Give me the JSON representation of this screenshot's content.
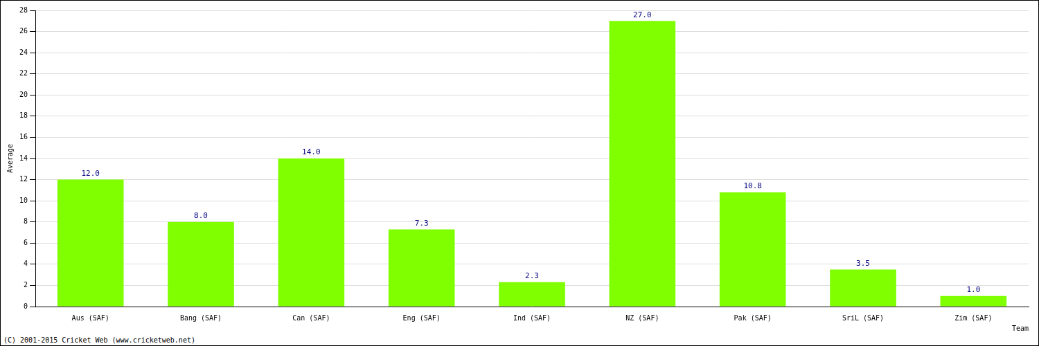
{
  "chart_data": {
    "type": "bar",
    "x_label": "Team",
    "y_label": "Average",
    "annotations": [
      "(C) 2001-2015 Cricket Web (www.cricketweb.net)"
    ],
    "categories": [
      "Aus (SAF)",
      "Bang (SAF)",
      "Can (SAF)",
      "Eng (SAF)",
      "Ind (SAF)",
      "NZ (SAF)",
      "Pak (SAF)",
      "SriL (SAF)",
      "Zim (SAF)"
    ],
    "values": [
      12.0,
      8.0,
      14.0,
      7.3,
      2.3,
      27.0,
      10.8,
      3.5,
      1.0
    ],
    "value_labels": [
      "12.0",
      "8.0",
      "14.0",
      "7.3",
      "2.3",
      "27.0",
      "10.8",
      "3.5",
      "1.0"
    ],
    "color": "#7fff00",
    "ylim": [
      0,
      28
    ],
    "yticks": [
      0,
      2,
      4,
      6,
      8,
      10,
      12,
      14,
      16,
      18,
      20,
      22,
      24,
      26,
      28
    ],
    "grid": true,
    "data_labels": true
  }
}
